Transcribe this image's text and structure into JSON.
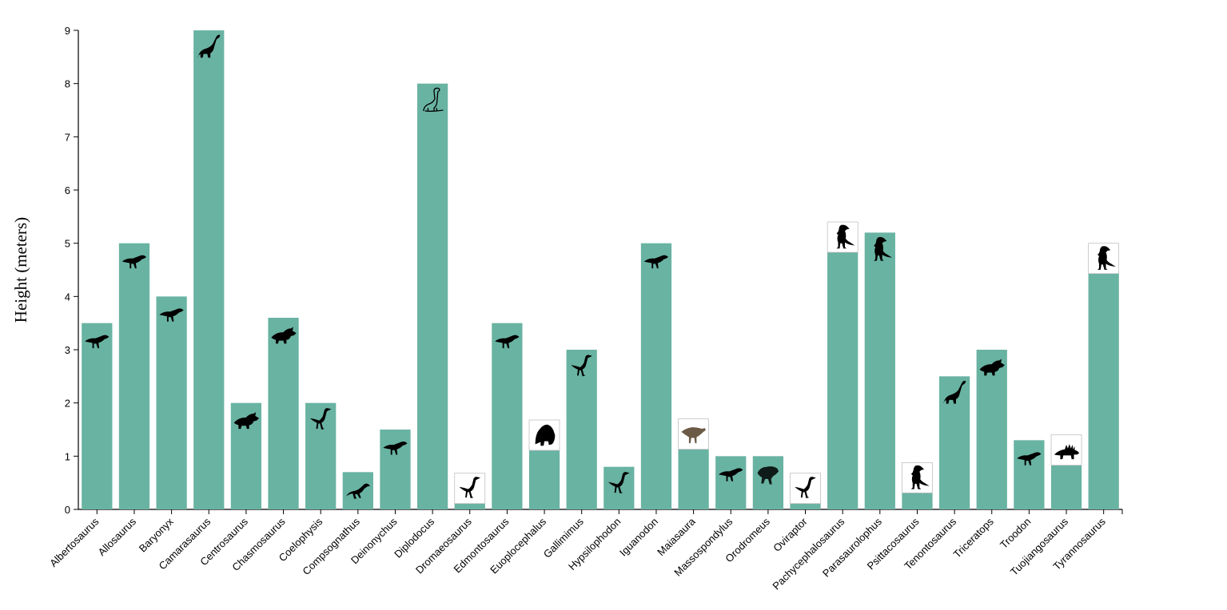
{
  "chart_data": {
    "type": "bar",
    "title": "",
    "xlabel": "",
    "ylabel": "Height (meters)",
    "ylim": [
      0,
      9
    ],
    "yticks": [
      0,
      1,
      2,
      3,
      4,
      5,
      6,
      7,
      8,
      9
    ],
    "bar_color": "#69b3a2",
    "grid": false,
    "categories": [
      "Albertosaurus",
      "Allosaurus",
      "Baryonyx",
      "Camarasaurus",
      "Centrosaurus",
      "Chasmosaurus",
      "Coelophysis",
      "Compsognathus",
      "Deinonychus",
      "Diplodocus",
      "Dromaeosaurus",
      "Edmontosaurus",
      "Euoplocephalus",
      "Gallimimus",
      "Hypsilophodon",
      "Iguanodon",
      "Maiasaura",
      "Massospondylus",
      "Orodromeus",
      "Oviraptor",
      "Pachycephalosaurus",
      "Parasaurolophus",
      "Psittacosaurus",
      "Tenontosaurus",
      "Triceratops",
      "Troodon",
      "Tuojiangosaurus",
      "Tyrannosaurus"
    ],
    "values": [
      3.5,
      5,
      4,
      9,
      2,
      3.6,
      2,
      0.7,
      1.5,
      8,
      0.2,
      3.5,
      1.2,
      3,
      0.8,
      5,
      1.7,
      1,
      1,
      0.2,
      5.4,
      5.2,
      0.4,
      2.5,
      3,
      1.3,
      1.4,
      5
    ],
    "icons": [
      {
        "name": "albertosaurus-silhouette-icon",
        "type": "theropod",
        "framed": false
      },
      {
        "name": "allosaurus-silhouette-icon",
        "type": "theropod",
        "framed": false
      },
      {
        "name": "baryonyx-silhouette-icon",
        "type": "theropod",
        "framed": false
      },
      {
        "name": "camarasaurus-silhouette-icon",
        "type": "sauropod",
        "framed": false
      },
      {
        "name": "centrosaurus-silhouette-icon",
        "type": "ceratopsian",
        "framed": false
      },
      {
        "name": "chasmosaurus-silhouette-icon",
        "type": "ceratopsian",
        "framed": false
      },
      {
        "name": "coelophysis-silhouette-icon",
        "type": "ornithomimid",
        "framed": false
      },
      {
        "name": "compsognathus-silhouette-icon",
        "type": "small-theropod",
        "framed": false
      },
      {
        "name": "deinonychus-silhouette-icon",
        "type": "theropod",
        "framed": false
      },
      {
        "name": "diplodocus-outline-icon",
        "type": "sauropod-outline",
        "framed": false
      },
      {
        "name": "dromaeosaurus-silhouette-icon",
        "type": "ornithomimid",
        "framed": true
      },
      {
        "name": "edmontosaurus-silhouette-icon",
        "type": "theropod",
        "framed": false
      },
      {
        "name": "euoplocephalus-silhouette-icon",
        "type": "armored",
        "framed": true
      },
      {
        "name": "gallimimus-silhouette-icon",
        "type": "ornithomimid",
        "framed": false
      },
      {
        "name": "hypsilophodon-silhouette-icon",
        "type": "ornithomimid",
        "framed": false
      },
      {
        "name": "iguanodon-silhouette-icon",
        "type": "theropod",
        "framed": false
      },
      {
        "name": "maiasaura-silhouette-icon",
        "type": "hadrosaur",
        "framed": true,
        "color": "#6b5a45"
      },
      {
        "name": "massospondylus-silhouette-icon",
        "type": "theropod",
        "framed": false
      },
      {
        "name": "orodromeus-silhouette-icon",
        "type": "blurred",
        "framed": false
      },
      {
        "name": "oviraptor-silhouette-icon",
        "type": "ornithomimid",
        "framed": true
      },
      {
        "name": "pachycephalosaurus-silhouette-icon",
        "type": "upright",
        "framed": true
      },
      {
        "name": "parasaurolophus-silhouette-icon",
        "type": "upright",
        "framed": false
      },
      {
        "name": "psittacosaurus-silhouette-icon",
        "type": "upright",
        "framed": true
      },
      {
        "name": "tenontosaurus-silhouette-icon",
        "type": "sauropod",
        "framed": false
      },
      {
        "name": "triceratops-silhouette-icon",
        "type": "ceratopsian",
        "framed": false
      },
      {
        "name": "troodon-silhouette-icon",
        "type": "theropod",
        "framed": false
      },
      {
        "name": "tuojiangosaurus-silhouette-icon",
        "type": "stegosaur",
        "framed": true
      },
      {
        "name": "tyrannosaurus-silhouette-icon",
        "type": "upright",
        "framed": true
      }
    ]
  }
}
